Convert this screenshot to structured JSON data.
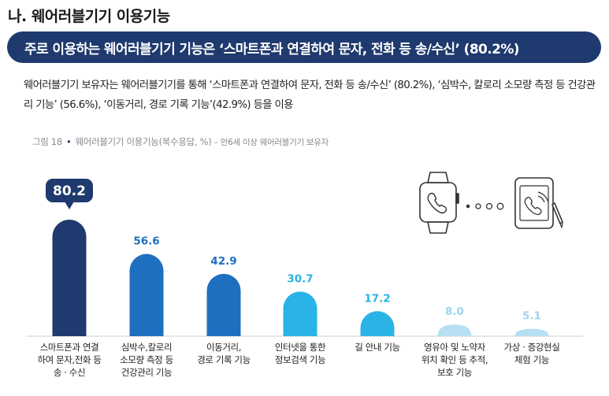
{
  "section_title": "나. 웨어러블기기 이용기능",
  "banner": "주로 이용하는 웨어러블기기 기능은 ‘스마트폰과 연결하여 문자, 전화 등 송/수신’ (80.2%)",
  "summary": "웨어러블기기 보유자는 웨어러블기기를 통해 ‘스마트폰과 연결하여 문자, 전화 등 송/수신’ (80.2%), ‘심박수, 칼로리 소모량 측정 등 건강관리 기능’ (56.6%), ‘이동거리, 경로 기록 기능’(42.9%) 등을 이용",
  "figure": {
    "label": "그림 18",
    "title": "웨어러블기기 이용기능(복수응답, %)",
    "note": "– 만6세 이상 웨어러블기기 보유자"
  },
  "chart_data": {
    "type": "bar",
    "categories": [
      [
        "스마트폰과 연결",
        "하여 문자,전화 등",
        "송 · 수신"
      ],
      [
        "심박수,칼로리",
        "소모량 측정 등",
        "건강관리 기능"
      ],
      [
        "이동거리,",
        "경로 기록 기능"
      ],
      [
        "인터넷을 통한",
        "정보검색 기능"
      ],
      [
        "길 안내 기능"
      ],
      [
        "영유아 및 노약자",
        "위치 확인 등 추적,",
        "보호 기능"
      ],
      [
        "가상 · 증강현실",
        "체험 기능"
      ]
    ],
    "values": [
      80.2,
      56.6,
      42.9,
      30.7,
      17.2,
      8.0,
      5.1
    ],
    "value_labels": [
      "80.2",
      "56.6",
      "42.9",
      "30.7",
      "17.2",
      "8.0",
      "5.1"
    ],
    "ylim": [
      0,
      100
    ],
    "highlight_index": 0,
    "colors": {
      "navy": "#1f3a6e",
      "blue": "#1e6fbf",
      "sky": "#2ab3e6",
      "light": "#b7dff3",
      "label_blue": "#1e6fbf",
      "label_sky": "#2ab3e6",
      "label_light": "#9fd3ee"
    },
    "bar_colors": [
      "navy",
      "blue",
      "blue",
      "sky",
      "sky",
      "light",
      "light"
    ]
  },
  "icons": [
    "smartwatch-phone-icon",
    "tablet-stylus-icon"
  ]
}
